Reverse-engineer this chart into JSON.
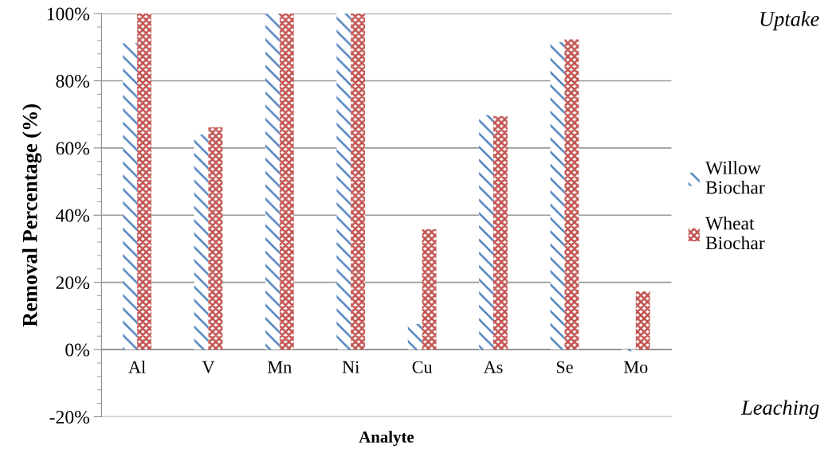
{
  "chart_data": {
    "type": "bar",
    "xlabel": "Analyte",
    "ylabel": "Removal Percentage (%)",
    "categories": [
      "Al",
      "V",
      "Mn",
      "Ni",
      "Cu",
      "As",
      "Se",
      "Mo"
    ],
    "series": [
      {
        "name": "Willow\nBiochar",
        "color": "#4f81bd",
        "values": [
          91.2,
          64.0,
          100,
          100,
          7.6,
          69.8,
          91.5,
          -0.5
        ]
      },
      {
        "name": "Wheat\nBiochar",
        "color": "#c0504d",
        "values": [
          100,
          66.2,
          100,
          100,
          35.8,
          69.5,
          92.3,
          17.3
        ]
      }
    ],
    "ylim": [
      -20,
      100
    ],
    "yticks": [
      {
        "value": -20,
        "label": "-20%"
      },
      {
        "value": 0,
        "label": "0%"
      },
      {
        "value": 20,
        "label": "20%"
      },
      {
        "value": 40,
        "label": "40%"
      },
      {
        "value": 60,
        "label": "60%"
      },
      {
        "value": 80,
        "label": "80%"
      },
      {
        "value": 100,
        "label": "100%"
      }
    ],
    "annotations": [
      "Uptake",
      "Leaching"
    ],
    "grid": "y",
    "legend": "right"
  }
}
